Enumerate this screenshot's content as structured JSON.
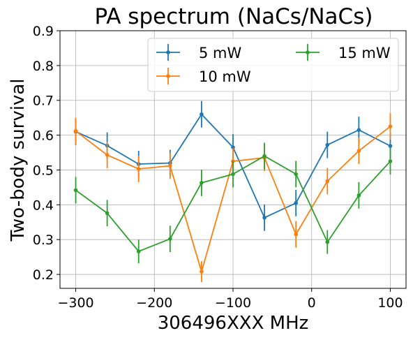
{
  "chart_data": {
    "type": "line",
    "title": "PA spectrum (NaCs/NaCs)",
    "xlabel": "306496XXX MHz",
    "ylabel": "Two-body survival",
    "xlim": [
      -320,
      120
    ],
    "ylim": [
      0.16,
      0.9
    ],
    "xticks": [
      -300,
      -200,
      -100,
      0,
      100
    ],
    "xtick_labels": [
      "−300",
      "−200",
      "−100",
      "0",
      "100"
    ],
    "yticks": [
      0.2,
      0.3,
      0.4,
      0.5,
      0.6,
      0.7,
      0.8,
      0.9
    ],
    "ytick_labels": [
      "0.2",
      "0.3",
      "0.4",
      "0.5",
      "0.6",
      "0.7",
      "0.8",
      "0.9"
    ],
    "grid": true,
    "legend_position": "top-right",
    "series": [
      {
        "name": "5 mW",
        "color": "#1f77b4",
        "x": [
          -300,
          -260,
          -220,
          -180,
          -140,
          -100,
          -60,
          -20,
          20,
          60,
          100
        ],
        "y": [
          0.61,
          0.57,
          0.517,
          0.52,
          0.66,
          0.565,
          0.363,
          0.405,
          0.572,
          0.615,
          0.569
        ],
        "err": [
          0.038,
          0.038,
          0.038,
          0.038,
          0.038,
          0.038,
          0.038,
          0.038,
          0.038,
          0.038,
          0.038
        ]
      },
      {
        "name": "10 mW",
        "color": "#ff7f0e",
        "x": [
          -300,
          -260,
          -220,
          -180,
          -140,
          -100,
          -60,
          -20,
          20,
          60,
          100
        ],
        "y": [
          0.612,
          0.543,
          0.503,
          0.512,
          0.208,
          0.525,
          0.535,
          0.315,
          0.468,
          0.555,
          0.625
        ],
        "err": [
          0.038,
          0.038,
          0.038,
          0.038,
          0.03,
          0.038,
          0.038,
          0.038,
          0.038,
          0.038,
          0.038
        ]
      },
      {
        "name": "15 mW",
        "color": "#2ca02c",
        "x": [
          -300,
          -260,
          -220,
          -180,
          -140,
          -100,
          -60,
          -20,
          20,
          60,
          100
        ],
        "y": [
          0.442,
          0.376,
          0.266,
          0.302,
          0.463,
          0.488,
          0.54,
          0.488,
          0.293,
          0.427,
          0.525
        ],
        "err": [
          0.038,
          0.038,
          0.034,
          0.038,
          0.038,
          0.038,
          0.038,
          0.038,
          0.034,
          0.038,
          0.038
        ]
      }
    ]
  }
}
